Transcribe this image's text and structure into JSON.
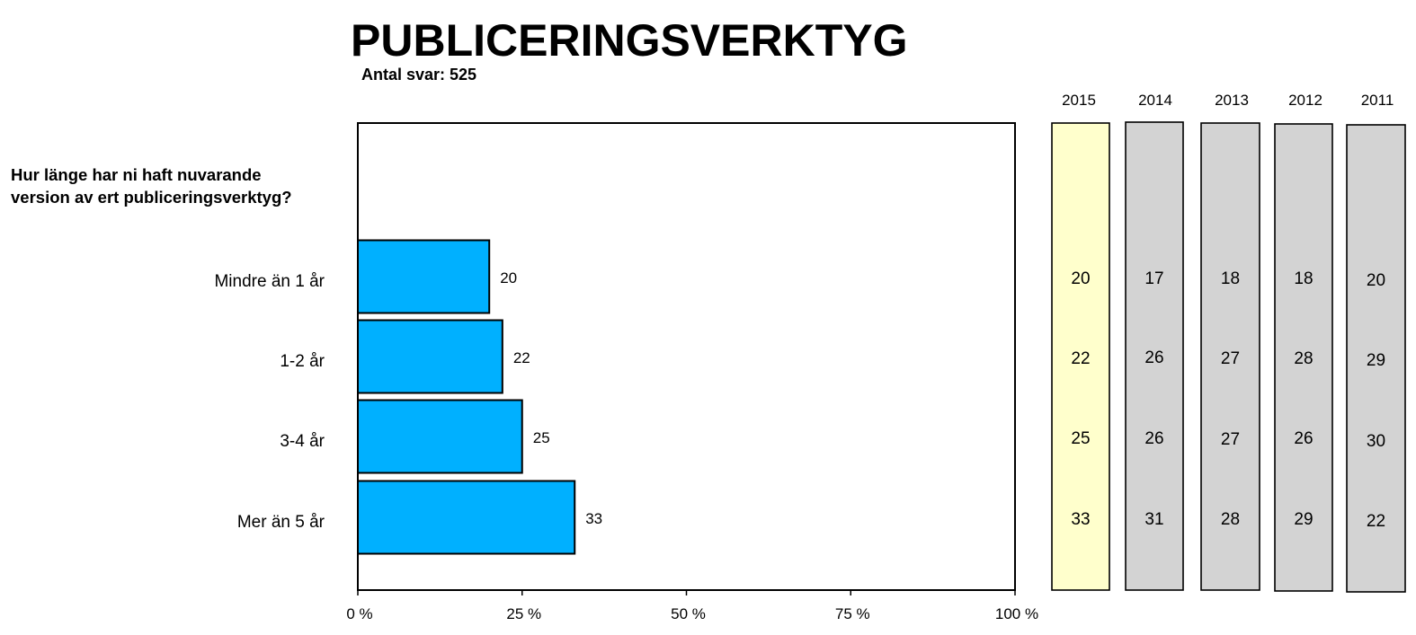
{
  "header": {
    "title": "PUBLICERINGSVERKTYG",
    "subtitle": "Antal svar: 525",
    "question": "Hur länge har ni haft nuvarande version av ert publiceringsverktyg?"
  },
  "colors": {
    "bar": "#00B0FF",
    "highlight_year": "#FFFFCC",
    "other_years": "#D3D3D3"
  },
  "chart_data": [
    {
      "type": "bar",
      "orientation": "horizontal",
      "categories": [
        "Mindre än 1 år",
        "1-2 år",
        "3-4 år",
        "Mer än 5 år"
      ],
      "values": [
        20,
        22,
        25,
        33
      ],
      "xlim": [
        0,
        100
      ],
      "ticks": [
        "0 %",
        "25 %",
        "50 %",
        "75 %",
        "100 %"
      ],
      "tick_values": [
        0,
        25,
        50,
        75,
        100
      ],
      "grid": false,
      "data_labels": true
    },
    {
      "type": "table",
      "columns": [
        "2015",
        "2014",
        "2013",
        "2012",
        "2011"
      ],
      "rows": [
        [
          20,
          17,
          18,
          18,
          20
        ],
        [
          22,
          26,
          27,
          28,
          29
        ],
        [
          25,
          26,
          27,
          26,
          30
        ],
        [
          33,
          31,
          28,
          29,
          22
        ]
      ]
    }
  ]
}
